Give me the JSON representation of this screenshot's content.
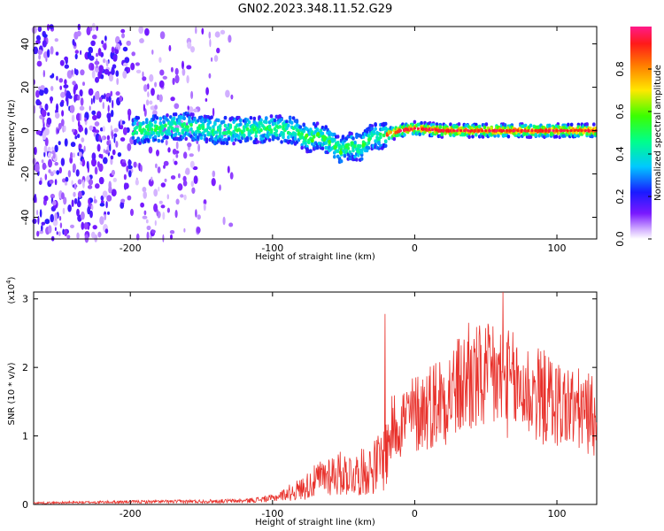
{
  "figure_title": "GN02.2023.348.11.52.G29",
  "colors": {
    "snr_line": "#e8302a",
    "axis": "#000000"
  },
  "chart_data": [
    {
      "type": "heatmap",
      "xlabel": "Height of straight line (km)",
      "ylabel": "Frequency (Hz)",
      "xlim": [
        -268,
        128
      ],
      "ylim": [
        -50,
        48
      ],
      "x_ticks": [
        "-200",
        "-100",
        "0",
        "100"
      ],
      "y_ticks": [
        "-40",
        "-20",
        "0",
        "20",
        "40"
      ],
      "colorbar": {
        "label": "Normalized spectral amplitude",
        "range": [
          0,
          1
        ],
        "ticks": [
          "0.0",
          "0.2",
          "0.4",
          "0.6",
          "0.8"
        ]
      },
      "ridge": [
        {
          "x": -196,
          "y": 0
        },
        {
          "x": -180,
          "y": 1
        },
        {
          "x": -160,
          "y": 2
        },
        {
          "x": -140,
          "y": 0
        },
        {
          "x": -120,
          "y": 0
        },
        {
          "x": -100,
          "y": 1
        },
        {
          "x": -85,
          "y": 0
        },
        {
          "x": -75,
          "y": -4
        },
        {
          "x": -68,
          "y": -2
        },
        {
          "x": -60,
          "y": -5
        },
        {
          "x": -52,
          "y": -9
        },
        {
          "x": -46,
          "y": -7
        },
        {
          "x": -38,
          "y": -8
        },
        {
          "x": -30,
          "y": -3
        },
        {
          "x": -20,
          "y": -2
        },
        {
          "x": -10,
          "y": 0
        },
        {
          "x": 0,
          "y": 1
        },
        {
          "x": 20,
          "y": 0
        },
        {
          "x": 60,
          "y": 0
        },
        {
          "x": 100,
          "y": 0
        },
        {
          "x": 128,
          "y": 0
        }
      ]
    },
    {
      "type": "line",
      "xlabel": "Height of straight line (km)",
      "ylabel": "SNR (10 * v/v)",
      "y_multiplier": "(x10",
      "y_multiplier_exp": "4",
      "y_multiplier_close": ")",
      "xlim": [
        -268,
        128
      ],
      "ylim": [
        0,
        3.1
      ],
      "x_ticks": [
        "-200",
        "-100",
        "0",
        "100"
      ],
      "y_ticks": [
        "0",
        "1",
        "2",
        "3"
      ],
      "series": [
        {
          "envelope": [
            {
              "x": -268,
              "y": 0.03
            },
            {
              "x": -200,
              "y": 0.05
            },
            {
              "x": -150,
              "y": 0.06
            },
            {
              "x": -120,
              "y": 0.07
            },
            {
              "x": -100,
              "y": 0.12
            },
            {
              "x": -80,
              "y": 0.3
            },
            {
              "x": -60,
              "y": 0.6
            },
            {
              "x": -40,
              "y": 0.6
            },
            {
              "x": -30,
              "y": 0.7
            },
            {
              "x": -22,
              "y": 0.9
            },
            {
              "x": -20,
              "y": 1.0
            },
            {
              "x": -15,
              "y": 1.4
            },
            {
              "x": 0,
              "y": 1.6
            },
            {
              "x": 20,
              "y": 1.9
            },
            {
              "x": 40,
              "y": 2.2
            },
            {
              "x": 60,
              "y": 2.2
            },
            {
              "x": 80,
              "y": 2.0
            },
            {
              "x": 100,
              "y": 1.8
            },
            {
              "x": 128,
              "y": 1.55
            }
          ],
          "spikes": [
            {
              "x": -21,
              "y": 2.78
            },
            {
              "x": 38,
              "y": 2.65
            },
            {
              "x": 62,
              "y": 3.1
            },
            {
              "x": 55,
              "y": 2.6
            },
            {
              "x": 90,
              "y": 2.0
            }
          ]
        }
      ]
    }
  ]
}
